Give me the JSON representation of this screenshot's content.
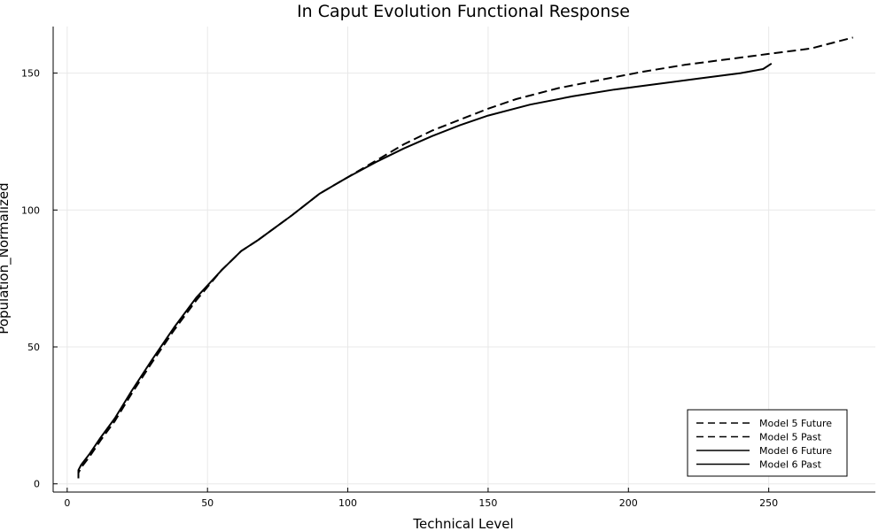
{
  "chart_data": {
    "type": "line",
    "title": "In Caput Evolution Functional Response",
    "xlabel": "Technical Level",
    "ylabel": "Population_Normalized",
    "xlim": [
      -5,
      288
    ],
    "ylim": [
      -3,
      167
    ],
    "xticks": [
      0,
      50,
      100,
      150,
      200,
      250
    ],
    "yticks": [
      0,
      50,
      100,
      150
    ],
    "grid": true,
    "legend_position": "bottom-right",
    "series": [
      {
        "name": "Model 5 Future",
        "style": "dashed",
        "color": "#000000",
        "x": [
          68,
          80,
          90,
          100,
          110,
          120,
          130,
          140,
          150,
          160,
          175,
          190,
          205,
          220,
          235,
          250,
          265,
          280
        ],
        "y": [
          89,
          98,
          106,
          112,
          118,
          124,
          129,
          133,
          137,
          140.5,
          144.5,
          147.5,
          150.5,
          153,
          155,
          157,
          159,
          163
        ]
      },
      {
        "name": "Model 5 Past",
        "style": "dashed",
        "color": "#000000",
        "x": [
          4,
          4,
          5,
          8,
          12,
          17,
          23,
          30,
          38,
          46,
          55,
          62,
          68
        ],
        "y": [
          2,
          4,
          6,
          10,
          16,
          23,
          33,
          44,
          56,
          67,
          78,
          85,
          89
        ]
      },
      {
        "name": "Model 6 Future",
        "style": "solid",
        "color": "#000000",
        "x": [
          68,
          80,
          90,
          100,
          110,
          120,
          130,
          140,
          150,
          165,
          180,
          195,
          210,
          225,
          240,
          248,
          251
        ],
        "y": [
          89,
          98,
          106,
          112,
          117.5,
          122.5,
          127,
          131,
          134.5,
          138.5,
          141.5,
          144,
          146,
          148,
          150,
          151.5,
          153.5
        ]
      },
      {
        "name": "Model 6 Past",
        "style": "solid",
        "color": "#000000",
        "x": [
          4,
          4,
          5,
          8,
          12,
          17,
          23,
          30,
          38,
          46,
          55,
          62,
          68
        ],
        "y": [
          3,
          5,
          7,
          11,
          17,
          24,
          34,
          45,
          57,
          68,
          78,
          85,
          89
        ]
      }
    ]
  }
}
